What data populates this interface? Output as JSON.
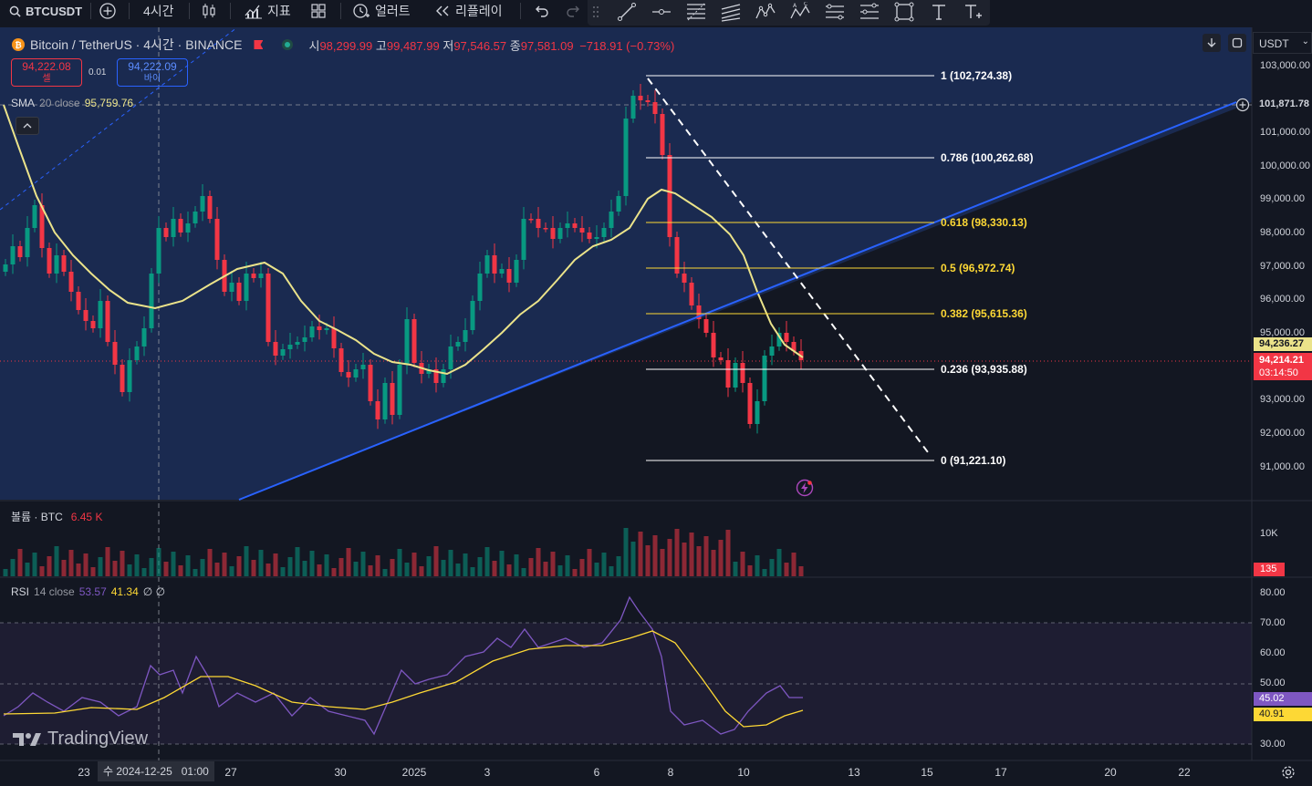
{
  "toolbar": {
    "symbol": "BTCUSDT",
    "interval": "4시간",
    "indicators_label": "지표",
    "alert_label": "얼러트",
    "replay_label": "리플레이"
  },
  "legend": {
    "title": "Bitcoin / TetherUS · 4시간 · BINANCE",
    "open_prefix": "시",
    "open": "98,299.99",
    "high_prefix": "고",
    "high": "99,487.99",
    "low_prefix": "저",
    "low": "97,546.57",
    "close_prefix": "종",
    "close": "97,581.09",
    "change": "−718.91 (−0.73%)",
    "sell_price": "94,222.08",
    "sell_label": "셀",
    "spread": "0.01",
    "buy_price": "94,222.09",
    "buy_label": "바이",
    "sma_name": "SMA",
    "sma_params": "20 close",
    "sma_value": "95,759.76"
  },
  "currency": "USDT",
  "price_axis": [
    "103,000.00",
    "101,000.00",
    "100,000.00",
    "99,000.00",
    "98,000.00",
    "97,000.00",
    "96,000.00",
    "95,000.00",
    "93,000.00",
    "92,000.00",
    "91,000.00"
  ],
  "crosshair_price": "101,871.78",
  "sma_tag": "94,236.27",
  "last_price": "94,214.21",
  "countdown": "03:14:50",
  "fib_levels": [
    {
      "ratio": "1",
      "price": "102,724.38"
    },
    {
      "ratio": "0.786",
      "price": "100,262.68"
    },
    {
      "ratio": "0.618",
      "price": "98,330.13"
    },
    {
      "ratio": "0.5",
      "price": "96,972.74"
    },
    {
      "ratio": "0.382",
      "price": "95,615.36"
    },
    {
      "ratio": "0.236",
      "price": "93,935.88"
    },
    {
      "ratio": "0",
      "price": "91,221.10"
    }
  ],
  "volume": {
    "label": "볼륨 · BTC",
    "value": "6.45 K",
    "axis": "10K",
    "tag": "135"
  },
  "rsi": {
    "name": "RSI",
    "params": "14 close",
    "value1": "53.57",
    "value2": "41.34",
    "extra": "∅ ∅",
    "axis": [
      "80.00",
      "70.00",
      "60.00",
      "50.00",
      "30.00"
    ],
    "tag1": "45.02",
    "tag2": "40.91"
  },
  "time_axis": [
    "23",
    "27",
    "30",
    "2025",
    "3",
    "6",
    "8",
    "10",
    "13",
    "15",
    "17",
    "20",
    "22"
  ],
  "crosshair_time": "수 2024-12-25   01:00",
  "watermark": "TradingView",
  "colors": {
    "bg": "#131722",
    "up": "#089981",
    "down": "#f23645",
    "sma": "#ebe38a",
    "trend": "#2962ff",
    "rsi": "#7e57c2",
    "rsi_ma": "#fdd835",
    "fib": "#ffffff",
    "fib_mid": "#fdd835"
  }
}
